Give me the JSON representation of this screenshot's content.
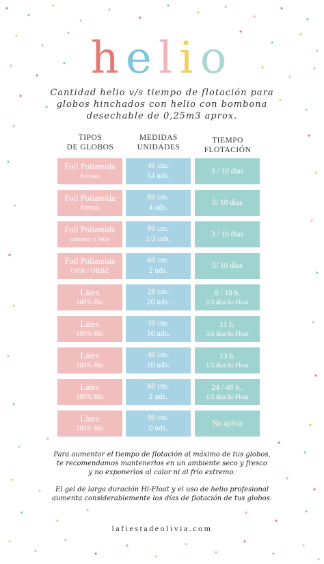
{
  "logo": {
    "letters": [
      {
        "char": "h",
        "color": "#e27b74"
      },
      {
        "char": "e",
        "color": "#7ec5e0"
      },
      {
        "char": "l",
        "color": "#f2b3b8"
      },
      {
        "char": "i",
        "color": "#f2cf62"
      },
      {
        "char": "o",
        "color": "#a9d8d3"
      }
    ]
  },
  "subtitle": {
    "line1": "Cantidad helio v/s tiempo de flotación para",
    "line2": "globos hinchados con helio con bombona",
    "line3": "desechable de 0,25m3 aprox."
  },
  "headers": {
    "tipos": {
      "line1": "TIPOS",
      "line2": "DE GLOBOS"
    },
    "medidas": {
      "line1": "MEDIDAS",
      "line2": "UNIDADES"
    },
    "tiempo": {
      "line1": "TIEMPO",
      "line2": "FLOTACIÓN"
    }
  },
  "rows": [
    {
      "tipo": "Foil Poliamida",
      "tipo_sub": "formas",
      "medida": "40 cm.",
      "unidades": "14 uds.",
      "tiempo": "3 / 10 días",
      "tiempo_sub": ""
    },
    {
      "tipo": "Foil Poliamida",
      "tipo_sub": "formas",
      "medida": "80 cm.",
      "unidades": "4 uds.",
      "tiempo": "5/ 10 días",
      "tiempo_sub": ""
    },
    {
      "tipo": "Foil Poliamida",
      "tipo_sub": "número y letra",
      "medida": "90 cm.",
      "unidades": "1/2 uds.",
      "tiempo": "3 / 10 días",
      "tiempo_sub": ""
    },
    {
      "tipo": "Foil Poliamida",
      "tipo_sub": "Orbit / ORBZ",
      "medida": "60 cm.",
      "unidades": "2 uds.",
      "tiempo": "5/ 10 días",
      "tiempo_sub": ""
    },
    {
      "tipo": "Látex",
      "tipo_sub": "100% Bio",
      "medida": "28 cm.",
      "unidades": "20 uds.",
      "tiempo": "8 / 10 h.",
      "tiempo_sub": "2/3 días hi-Float"
    },
    {
      "tipo": "Látex",
      "tipo_sub": "100% Bio",
      "medida": "30 cm.",
      "unidades": "16 uds.",
      "tiempo": "11 h.",
      "tiempo_sub": "3/5 días hi-Float"
    },
    {
      "tipo": "Látex",
      "tipo_sub": "100% Bio",
      "medida": "40 cm.",
      "unidades": "10 uds.",
      "tiempo": "13 h.",
      "tiempo_sub": "1/3 días hi-Float"
    },
    {
      "tipo": "Látex",
      "tipo_sub": "100% Bio",
      "medida": "60 cm.",
      "unidades": "2 uds.",
      "tiempo": "24 / 48 h..",
      "tiempo_sub": "1/3 días hi-Float"
    },
    {
      "tipo": "Látex",
      "tipo_sub": "100% Bio",
      "medida": "90 cm.",
      "unidades": "0 uds.",
      "tiempo": "No aplica",
      "tiempo_sub": ""
    }
  ],
  "notes": {
    "p1_l1": "Para aumentar el tiempo de flotación al máximo de tus globos,",
    "p1_l2": "te recomendamos mantenerlos en un ambiente seco y fresco",
    "p1_l3": "y no exponerlos al calor ni al frío extremo.",
    "p2_l1": "El gel de larga duración Hi-Float y el uso de helio profesional",
    "p2_l2": "aumenta considerablemente los días de flotación de tus globos."
  },
  "footer": "lafiestadeolivia.com",
  "palette": {
    "pink": "#f2bdbd",
    "blue": "#a8d3e4",
    "teal": "#9fd3cf",
    "dot_colors": [
      "#e27b74",
      "#7ec5e0",
      "#f2cf62",
      "#a9d8d3",
      "#f2b3b8"
    ]
  }
}
